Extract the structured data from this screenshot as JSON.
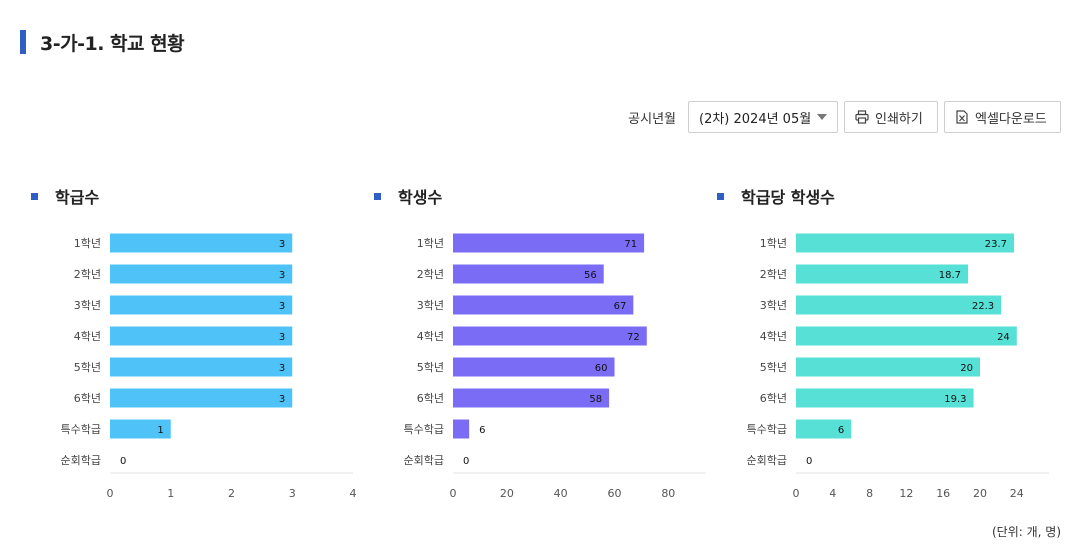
{
  "header": {
    "title": "3-가-1. 학교 현황"
  },
  "controls": {
    "year_label": "공시년월",
    "year_value": "(2차) 2024년 05월",
    "print_label": "인쇄하기",
    "excel_label": "엑셀다운로드"
  },
  "footer": {
    "unit": "(단위: 개, 명)"
  },
  "chart_data": [
    {
      "type": "bar",
      "orientation": "horizontal",
      "title": "학급수",
      "categories": [
        "1학년",
        "2학년",
        "3학년",
        "4학년",
        "5학년",
        "6학년",
        "특수학급",
        "순회학급"
      ],
      "values": [
        3,
        3,
        3,
        3,
        3,
        3,
        1,
        0
      ],
      "value_labels": [
        "3",
        "3",
        "3",
        "3",
        "3",
        "3",
        "1",
        "0"
      ],
      "xlim": [
        0,
        4
      ],
      "ticks": [
        0,
        1,
        2,
        3,
        4
      ],
      "color": "#4fc3f7"
    },
    {
      "type": "bar",
      "orientation": "horizontal",
      "title": "학생수",
      "categories": [
        "1학년",
        "2학년",
        "3학년",
        "4학년",
        "5학년",
        "6학년",
        "특수학급",
        "순회학급"
      ],
      "values": [
        71,
        56,
        67,
        72,
        60,
        58,
        6,
        0
      ],
      "value_labels": [
        "71",
        "56",
        "67",
        "72",
        "60",
        "58",
        "6",
        "0"
      ],
      "xlim": [
        0,
        94
      ],
      "ticks": [
        0,
        20,
        40,
        60,
        80
      ],
      "color": "#7b6cf6"
    },
    {
      "type": "bar",
      "orientation": "horizontal",
      "title": "학급당 학생수",
      "categories": [
        "1학년",
        "2학년",
        "3학년",
        "4학년",
        "5학년",
        "6학년",
        "특수학급",
        "순회학급"
      ],
      "values": [
        23.7,
        18.7,
        22.3,
        24,
        20,
        19.3,
        6,
        0
      ],
      "value_labels": [
        "23.7",
        "18.7",
        "22.3",
        "24",
        "20",
        "19.3",
        "6",
        "0"
      ],
      "xlim": [
        0,
        27.5
      ],
      "ticks": [
        0,
        4,
        8,
        12,
        16,
        20,
        24
      ],
      "color": "#56e0d6"
    }
  ]
}
